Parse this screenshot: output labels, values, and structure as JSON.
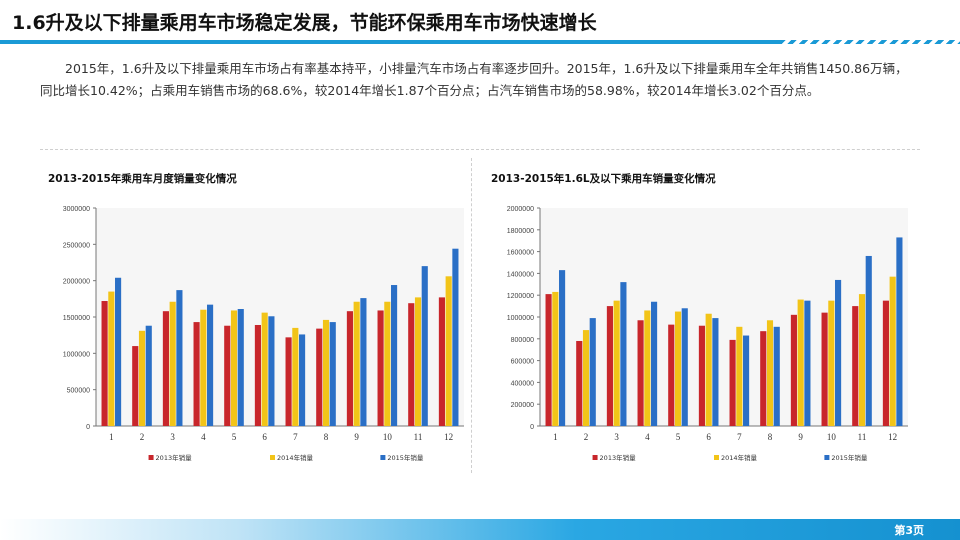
{
  "header": {
    "title": "1.6升及以下排量乘用车市场稳定发展，节能环保乘用车市场快速增长"
  },
  "summary": {
    "text": "2015年，1.6升及以下排量乘用车市场占有率基本持平，小排量汽车市场占有率逐步回升。2015年，1.6升及以下排量乘用车全年共销售1450.86万辆，同比增长10.42%；占乘用车销售市场的68.6%，较2014年增长1.87个百分点；占汽车销售市场的58.98%，较2014年增长3.02个百分点。"
  },
  "footer": {
    "page_label": "第3页"
  },
  "colors": {
    "accent": "#1a9ad6",
    "s2013": "#c8262b",
    "s2014": "#f2c418",
    "s2015": "#2a6fc6"
  },
  "chart_data": [
    {
      "type": "bar",
      "title": "2013-2015年乘用车月度销量变化情况",
      "categories": [
        "1",
        "2",
        "3",
        "4",
        "5",
        "6",
        "7",
        "8",
        "9",
        "10",
        "11",
        "12"
      ],
      "ylim": [
        0,
        3000000
      ],
      "yticks": [
        "0",
        "500000",
        "1000000",
        "1500000",
        "2000000",
        "2500000",
        "3000000"
      ],
      "legend_position": "bottom",
      "series": [
        {
          "name": "2013年销量",
          "values": [
            1720000,
            1100000,
            1580000,
            1430000,
            1380000,
            1390000,
            1220000,
            1340000,
            1580000,
            1590000,
            1690000,
            1770000
          ]
        },
        {
          "name": "2014年销量",
          "values": [
            1850000,
            1310000,
            1710000,
            1600000,
            1590000,
            1560000,
            1350000,
            1460000,
            1710000,
            1710000,
            1770000,
            2060000
          ]
        },
        {
          "name": "2015年销量",
          "values": [
            2040000,
            1380000,
            1870000,
            1670000,
            1610000,
            1510000,
            1260000,
            1430000,
            1760000,
            1940000,
            2200000,
            2440000
          ]
        }
      ]
    },
    {
      "type": "bar",
      "title": "2013-2015年1.6L及以下乘用车销量变化情况",
      "categories": [
        "1",
        "2",
        "3",
        "4",
        "5",
        "6",
        "7",
        "8",
        "9",
        "10",
        "11",
        "12"
      ],
      "ylim": [
        0,
        2000000
      ],
      "yticks": [
        "0",
        "200000",
        "400000",
        "600000",
        "800000",
        "1000000",
        "1200000",
        "1400000",
        "1600000",
        "1800000",
        "2000000"
      ],
      "legend_position": "bottom",
      "series": [
        {
          "name": "2013年销量",
          "values": [
            1210000,
            780000,
            1100000,
            970000,
            930000,
            920000,
            790000,
            870000,
            1020000,
            1040000,
            1100000,
            1150000
          ]
        },
        {
          "name": "2014年销量",
          "values": [
            1230000,
            880000,
            1150000,
            1060000,
            1050000,
            1030000,
            910000,
            970000,
            1160000,
            1150000,
            1210000,
            1370000
          ]
        },
        {
          "name": "2015年销量",
          "values": [
            1430000,
            990000,
            1320000,
            1140000,
            1080000,
            990000,
            830000,
            910000,
            1150000,
            1340000,
            1560000,
            1730000
          ]
        }
      ]
    }
  ]
}
